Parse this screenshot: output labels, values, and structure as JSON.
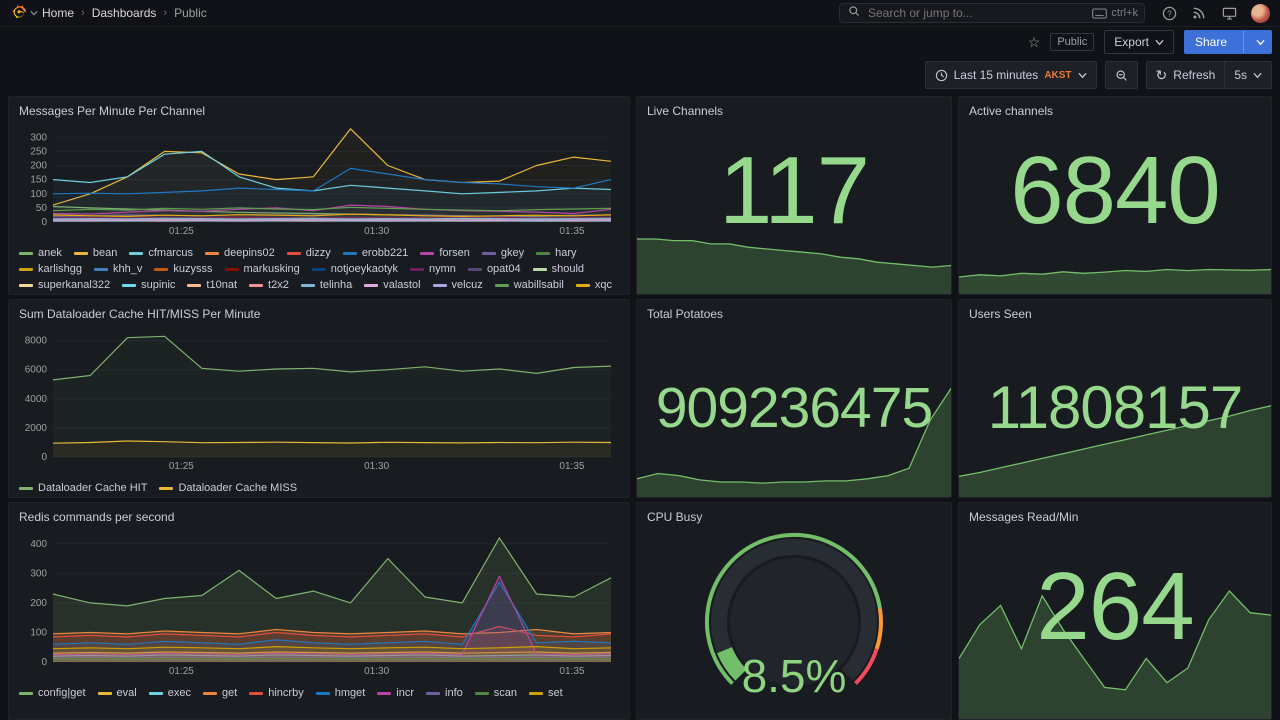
{
  "nav": {
    "breadcrumb": [
      "Home",
      "Dashboards",
      "Public"
    ],
    "search_placeholder": "Search or jump to...",
    "search_shortcut": "ctrl+k"
  },
  "icons": {
    "star": "☆",
    "refresh": "↻"
  },
  "actions": {
    "visibility_tag": "Public",
    "export_label": "Export",
    "share_label": "Share"
  },
  "toolbar": {
    "time_range": "Last 15 minutes",
    "timezone": "AKST",
    "refresh_label": "Refresh",
    "refresh_interval": "5s"
  },
  "colors": {
    "accent_blue": "#3D71D9",
    "stat_green": "#96D98D",
    "spark_line": "#73BF69",
    "timezone_orange": "#EB7B35",
    "panel_bg": "#181B1F",
    "page_bg": "#111217"
  },
  "panels": {
    "messages": {
      "title": "Messages Per Minute Per Channel"
    },
    "live_channels": {
      "title": "Live Channels",
      "value": "117"
    },
    "active_channels": {
      "title": "Active channels",
      "value": "6840"
    },
    "dataloader": {
      "title": "Sum Dataloader Cache HIT/MISS Per Minute"
    },
    "total_potatoes": {
      "title": "Total Potatoes",
      "value": "909236475"
    },
    "users_seen": {
      "title": "Users Seen",
      "value": "11808157"
    },
    "redis": {
      "title": "Redis commands per second"
    },
    "cpu_busy": {
      "title": "CPU Busy",
      "value": "8.5%"
    },
    "messages_read": {
      "title": "Messages Read/Min",
      "value": "264"
    }
  },
  "chart_data": {
    "messages": {
      "type": "line",
      "ymax": 340,
      "yticks": [
        0,
        50,
        100,
        150,
        200,
        250,
        300
      ],
      "xticks": [
        {
          "label": "01:25",
          "pos": 0.23
        },
        {
          "label": "01:30",
          "pos": 0.58
        },
        {
          "label": "01:35",
          "pos": 0.93
        }
      ],
      "fill_opacity": 0.04,
      "series": [
        {
          "name": "anek",
          "color": "#7EB26D",
          "values": [
            55,
            50,
            46,
            42,
            38,
            34,
            32,
            30,
            28,
            26,
            24,
            22,
            20,
            18,
            16,
            14
          ]
        },
        {
          "name": "bean",
          "color": "#EAB839",
          "values": [
            60,
            100,
            160,
            250,
            245,
            170,
            150,
            160,
            330,
            200,
            150,
            140,
            145,
            200,
            230,
            215
          ]
        },
        {
          "name": "cfmarcus",
          "color": "#6ED0E0",
          "values": [
            150,
            140,
            160,
            240,
            250,
            160,
            120,
            110,
            130,
            120,
            110,
            100,
            105,
            110,
            120,
            115
          ]
        },
        {
          "name": "deepins02",
          "color": "#EF843C",
          "values": [
            12,
            14,
            12,
            16,
            14,
            12,
            15,
            14,
            12,
            14,
            15,
            12,
            14,
            15,
            12,
            14
          ]
        },
        {
          "name": "dizzy",
          "color": "#E24D42",
          "values": [
            8,
            10,
            9,
            11,
            10,
            12,
            10,
            9,
            11,
            10,
            12,
            10,
            9,
            10,
            11,
            9
          ]
        },
        {
          "name": "erobb221",
          "color": "#1F78C1",
          "values": [
            100,
            102,
            100,
            105,
            110,
            120,
            115,
            110,
            190,
            170,
            150,
            140,
            135,
            125,
            120,
            150
          ]
        },
        {
          "name": "forsen",
          "color": "#BA43A9",
          "values": [
            30,
            28,
            35,
            40,
            38,
            45,
            50,
            40,
            60,
            55,
            45,
            40,
            38,
            35,
            30,
            45
          ]
        },
        {
          "name": "gkey",
          "color": "#705DA0",
          "values": [
            20,
            22,
            25,
            24,
            22,
            26,
            25,
            24,
            28,
            26,
            25,
            22,
            20,
            22,
            24,
            25
          ]
        },
        {
          "name": "hary",
          "color": "#508642",
          "values": [
            12,
            14,
            13,
            15,
            14,
            16,
            15,
            14,
            16,
            15,
            14,
            13,
            12,
            14,
            15,
            13
          ]
        },
        {
          "name": "karlishgg",
          "color": "#CCA300",
          "values": [
            6,
            7,
            8,
            7,
            6,
            8,
            7,
            6,
            8,
            7,
            6,
            7,
            8,
            6,
            7,
            8
          ]
        },
        {
          "name": "khh_v",
          "color": "#447EBC",
          "values": [
            5,
            6,
            5,
            7,
            6,
            5,
            6,
            7,
            5,
            6,
            7,
            5,
            6,
            5,
            7,
            6
          ]
        },
        {
          "name": "kuzysss",
          "color": "#C15C17",
          "values": [
            4,
            5,
            4,
            6,
            5,
            4,
            5,
            6,
            4,
            5,
            4,
            6,
            5,
            4,
            5,
            6
          ]
        },
        {
          "name": "markusking",
          "color": "#890F02",
          "values": [
            10,
            12,
            11,
            13,
            12,
            14,
            12,
            11,
            13,
            12,
            11,
            12,
            13,
            11,
            12,
            13
          ]
        },
        {
          "name": "notjoeykaotyk",
          "color": "#0A437C",
          "values": [
            3,
            4,
            3,
            5,
            4,
            3,
            4,
            5,
            3,
            4,
            3,
            5,
            4,
            3,
            4,
            5
          ]
        },
        {
          "name": "nymn",
          "color": "#6D1F62",
          "values": [
            15,
            16,
            15,
            17,
            16,
            18,
            16,
            15,
            17,
            16,
            15,
            16,
            17,
            15,
            16,
            17
          ]
        },
        {
          "name": "opat04",
          "color": "#584477",
          "values": [
            7,
            8,
            7,
            9,
            8,
            7,
            8,
            9,
            7,
            8,
            7,
            9,
            8,
            7,
            8,
            9
          ]
        },
        {
          "name": "should",
          "color": "#B7DBAB",
          "values": [
            9,
            10,
            9,
            11,
            10,
            9,
            10,
            11,
            9,
            10,
            9,
            11,
            10,
            9,
            10,
            11
          ]
        },
        {
          "name": "superkanal322",
          "color": "#F4D598",
          "values": [
            5,
            6,
            5,
            6,
            7,
            5,
            6,
            7,
            5,
            6,
            5,
            7,
            6,
            5,
            6,
            7
          ]
        },
        {
          "name": "supinic",
          "color": "#70DBED",
          "values": [
            4,
            4,
            5,
            4,
            5,
            4,
            5,
            4,
            5,
            4,
            5,
            4,
            5,
            4,
            4,
            5
          ]
        },
        {
          "name": "t10nat",
          "color": "#F9BA8F",
          "values": [
            6,
            7,
            6,
            8,
            7,
            6,
            7,
            8,
            6,
            7,
            6,
            8,
            7,
            6,
            7,
            8
          ]
        },
        {
          "name": "t2x2",
          "color": "#F29191",
          "values": [
            8,
            9,
            8,
            10,
            9,
            8,
            9,
            10,
            8,
            9,
            8,
            10,
            9,
            8,
            9,
            10
          ]
        },
        {
          "name": "telinha",
          "color": "#82B5D8",
          "values": [
            11,
            12,
            11,
            13,
            12,
            11,
            12,
            13,
            11,
            12,
            11,
            13,
            12,
            11,
            12,
            13
          ]
        },
        {
          "name": "valastol",
          "color": "#E5A8E2",
          "values": [
            5,
            5,
            6,
            5,
            6,
            5,
            6,
            5,
            6,
            5,
            6,
            5,
            5,
            6,
            5,
            6
          ]
        },
        {
          "name": "velcuz",
          "color": "#AEA2E0",
          "values": [
            7,
            7,
            8,
            7,
            8,
            7,
            8,
            7,
            8,
            7,
            8,
            7,
            8,
            7,
            7,
            8
          ]
        },
        {
          "name": "wabillsabil",
          "color": "#629E51",
          "values": [
            40,
            45,
            42,
            48,
            45,
            50,
            46,
            44,
            52,
            48,
            45,
            42,
            40,
            44,
            46,
            48
          ]
        },
        {
          "name": "xqc",
          "color": "#E5AC0E",
          "values": [
            25,
            22,
            20,
            24,
            22,
            26,
            24,
            22,
            28,
            25,
            22,
            20,
            22,
            24,
            22,
            25
          ]
        }
      ]
    },
    "dataloader": {
      "type": "line",
      "ymax": 8800,
      "yticks": [
        0,
        2000,
        4000,
        6000,
        8000
      ],
      "xticks": [
        {
          "label": "01:25",
          "pos": 0.23
        },
        {
          "label": "01:30",
          "pos": 0.58
        },
        {
          "label": "01:35",
          "pos": 0.93
        }
      ],
      "fill_opacity": 0.06,
      "series": [
        {
          "name": "Dataloader Cache HIT",
          "color": "#7EB26D",
          "values": [
            5300,
            5600,
            8200,
            8300,
            6100,
            5900,
            6050,
            6100,
            5850,
            6000,
            6200,
            5900,
            6050,
            5750,
            6150,
            6250
          ]
        },
        {
          "name": "Dataloader Cache MISS",
          "color": "#EAB839",
          "values": [
            950,
            1000,
            1100,
            1050,
            980,
            1000,
            1020,
            990,
            960,
            1010,
            990,
            970,
            1000,
            980,
            1020,
            1000
          ]
        }
      ]
    },
    "redis": {
      "type": "line",
      "ymax": 440,
      "yticks": [
        0,
        100,
        200,
        300,
        400
      ],
      "xticks": [
        {
          "label": "01:25",
          "pos": 0.23
        },
        {
          "label": "01:30",
          "pos": 0.58
        },
        {
          "label": "01:35",
          "pos": 0.93
        }
      ],
      "fill_opacity": 0.15,
      "series": [
        {
          "name": "config|get",
          "color": "#7EB26D",
          "values": [
            230,
            200,
            190,
            215,
            225,
            310,
            215,
            240,
            200,
            350,
            220,
            200,
            420,
            230,
            220,
            285
          ]
        },
        {
          "name": "eval",
          "color": "#EAB839",
          "values": [
            30,
            32,
            30,
            34,
            32,
            30,
            34,
            32,
            30,
            32,
            34,
            30,
            32,
            34,
            30,
            32
          ]
        },
        {
          "name": "exec",
          "color": "#6ED0E0",
          "values": [
            20,
            22,
            20,
            24,
            22,
            20,
            24,
            22,
            20,
            22,
            24,
            20,
            22,
            24,
            20,
            22
          ]
        },
        {
          "name": "get",
          "color": "#EF843C",
          "values": [
            95,
            100,
            95,
            105,
            100,
            95,
            110,
            100,
            95,
            100,
            105,
            95,
            100,
            110,
            95,
            100
          ]
        },
        {
          "name": "hincrby",
          "color": "#E24D42",
          "values": [
            85,
            90,
            85,
            95,
            90,
            85,
            100,
            90,
            85,
            90,
            95,
            85,
            120,
            90,
            85,
            95
          ]
        },
        {
          "name": "hmget",
          "color": "#1F78C1",
          "values": [
            60,
            65,
            60,
            70,
            65,
            60,
            75,
            65,
            60,
            65,
            70,
            60,
            270,
            65,
            70,
            65
          ]
        },
        {
          "name": "incr",
          "color": "#BA43A9",
          "values": [
            25,
            27,
            25,
            29,
            27,
            25,
            29,
            27,
            25,
            27,
            29,
            25,
            290,
            27,
            25,
            27
          ]
        },
        {
          "name": "info",
          "color": "#705DA0",
          "values": [
            15,
            16,
            15,
            17,
            16,
            15,
            17,
            16,
            15,
            16,
            17,
            15,
            16,
            17,
            15,
            16
          ]
        },
        {
          "name": "scan",
          "color": "#508642",
          "values": [
            10,
            11,
            10,
            12,
            11,
            10,
            12,
            11,
            10,
            11,
            12,
            10,
            11,
            12,
            10,
            11
          ]
        },
        {
          "name": "set",
          "color": "#CCA300",
          "values": [
            45,
            48,
            45,
            50,
            48,
            45,
            52,
            48,
            45,
            48,
            50,
            45,
            48,
            52,
            45,
            48
          ]
        }
      ]
    },
    "live_spark": {
      "type": "spark",
      "scale": "minmax",
      "band": [
        0.42,
        0.86
      ],
      "color": "#73BF69",
      "fill": "rgba(115,191,105,0.24)",
      "values": [
        133,
        133,
        132,
        132,
        130,
        130,
        128,
        127,
        126,
        125,
        124,
        122,
        121,
        119,
        118,
        117,
        116,
        117
      ]
    },
    "active_spark": {
      "type": "spark",
      "scale": "minmax",
      "band": [
        0.5,
        0.72
      ],
      "color": "#73BF69",
      "fill": "rgba(115,191,105,0.28)",
      "values": [
        6800,
        6812,
        6806,
        6820,
        6815,
        6828,
        6820,
        6826,
        6835,
        6830,
        6840,
        6834,
        6840,
        6838,
        6836,
        6840
      ]
    },
    "potatoes_spark": {
      "type": "spark",
      "scale": "zero",
      "band": [
        0.02,
        0.97
      ],
      "color": "#73BF69",
      "fill": "rgba(115,191,105,0.24)",
      "values": [
        1.5,
        2,
        1.8,
        1.4,
        1.2,
        1.2,
        1.1,
        1.2,
        1.2,
        1.3,
        1.3,
        1.5,
        1.8,
        2.5,
        7,
        10
      ]
    },
    "users_spark": {
      "type": "spark",
      "scale": "zero",
      "band": [
        0.02,
        0.95
      ],
      "color": "#73BF69",
      "fill": "rgba(115,191,105,0.24)",
      "values": [
        2,
        2.4,
        2.9,
        3.4,
        3.9,
        4.4,
        4.9,
        5.4,
        5.9,
        6.4,
        6.9,
        7.4,
        7.9,
        8.4,
        9,
        9.5
      ]
    },
    "read_spark": {
      "type": "spark",
      "scale": "zero",
      "band": [
        0.02,
        0.97
      ],
      "color": "#73BF69",
      "fill": "rgba(115,191,105,0.24)",
      "values": [
        120,
        190,
        230,
        140,
        250,
        180,
        120,
        60,
        55,
        120,
        70,
        100,
        200,
        260,
        215,
        210
      ]
    },
    "cpu_gauge": {
      "type": "gauge",
      "value": 8.5,
      "min": 0,
      "max": 100,
      "value_color": "#73BF69",
      "thresholds": [
        {
          "to": 80,
          "color": "#73BF69"
        },
        {
          "to": 90,
          "color": "#FF9830"
        },
        {
          "to": 100,
          "color": "#F2495C"
        }
      ]
    }
  }
}
